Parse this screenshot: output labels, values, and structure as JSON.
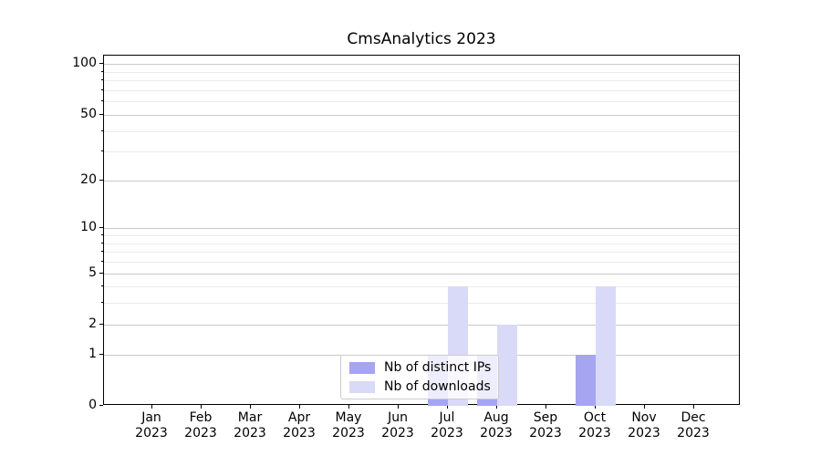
{
  "title": "CmsAnalytics 2023",
  "legend": {
    "items": [
      {
        "label": "Nb of distinct IPs",
        "color": "#a5a5f1"
      },
      {
        "label": "Nb of downloads",
        "color": "#d9d9f8"
      }
    ]
  },
  "chart_data": {
    "type": "bar",
    "title": "CmsAnalytics 2023",
    "categories": [
      "Jan 2023",
      "Feb 2023",
      "Mar 2023",
      "Apr 2023",
      "May 2023",
      "Jun 2023",
      "Jul 2023",
      "Aug 2023",
      "Sep 2023",
      "Oct 2023",
      "Nov 2023",
      "Dec 2023"
    ],
    "series": [
      {
        "name": "Nb of distinct IPs",
        "color": "#a5a5f1",
        "values": [
          0,
          0,
          0,
          0,
          0,
          0,
          1,
          1,
          0,
          1,
          0,
          0
        ]
      },
      {
        "name": "Nb of downloads",
        "color": "#d9d9f8",
        "values": [
          0,
          0,
          0,
          0,
          0,
          0,
          4,
          2,
          0,
          4,
          0,
          0
        ]
      }
    ],
    "xlabel": "",
    "ylabel": "",
    "yscale": "log1p",
    "ylim": [
      0,
      112
    ],
    "y_major_ticks": [
      0,
      1,
      2,
      5,
      10,
      20,
      50,
      100
    ],
    "y_minor_ticks": [
      3,
      4,
      6,
      7,
      8,
      9,
      30,
      40,
      60,
      70,
      80,
      90
    ],
    "grid": "horizontal, major and minor",
    "legend_position": "lower center",
    "bar_width_fraction": 0.4
  }
}
